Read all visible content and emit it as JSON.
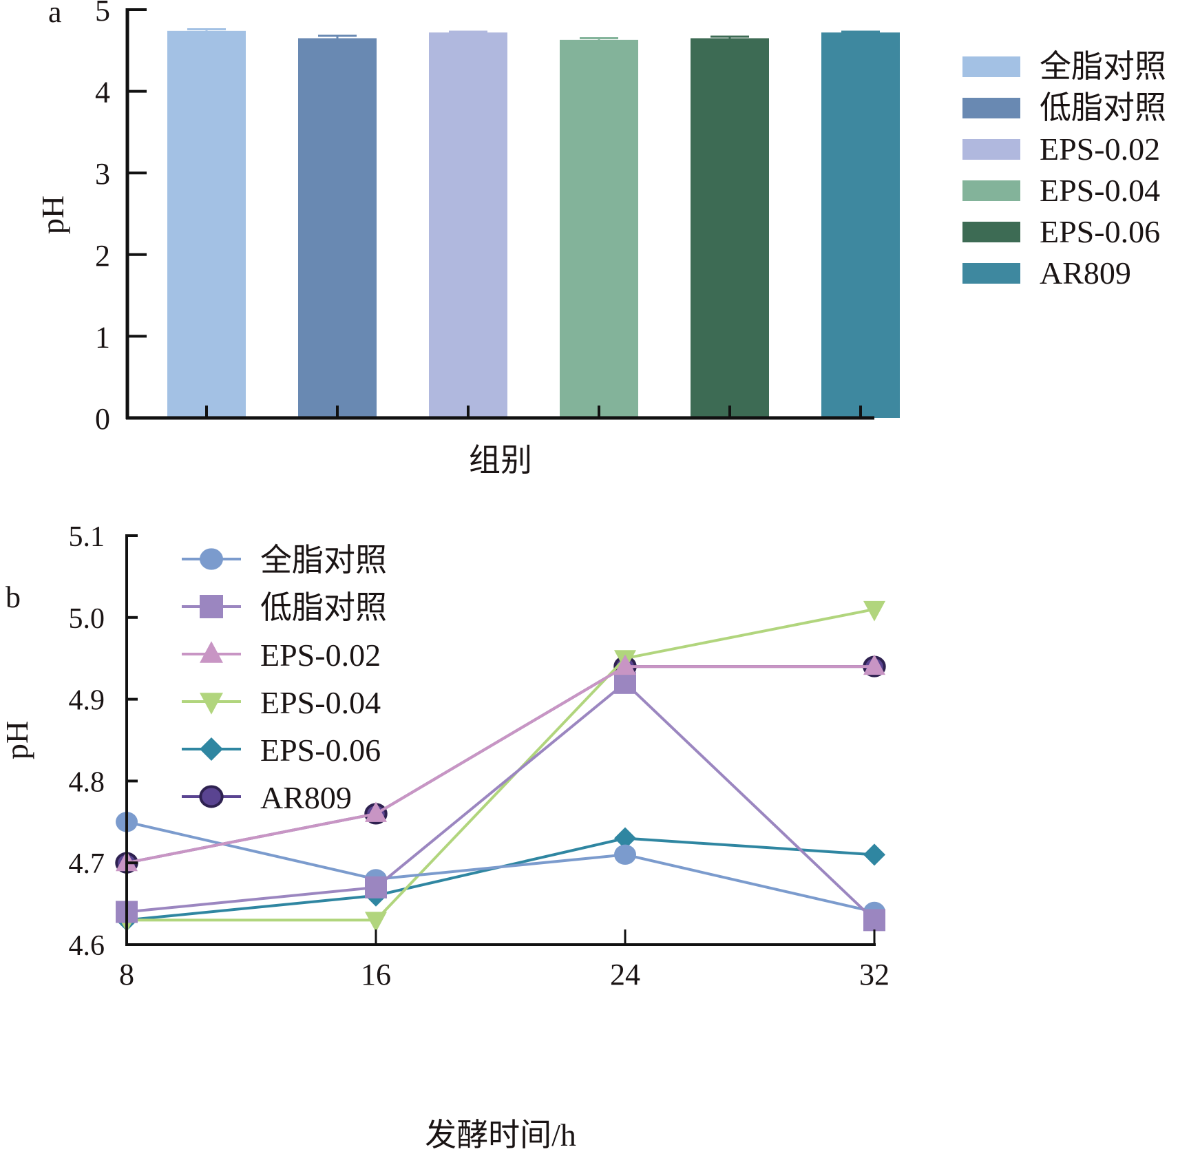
{
  "chart_data": [
    {
      "panel": "a",
      "type": "bar",
      "title": "",
      "xlabel": "组别",
      "ylabel": "pH",
      "ylim": [
        0,
        5
      ],
      "yticks": [
        "0",
        "1",
        "2",
        "3",
        "4",
        "5"
      ],
      "categories": [
        "全脂对照",
        "低脂对照",
        "EPS-0.02",
        "EPS-0.04",
        "EPS-0.06",
        "AR809"
      ],
      "values": [
        4.74,
        4.65,
        4.72,
        4.63,
        4.65,
        4.72
      ],
      "errors": [
        0.02,
        0.03,
        0.01,
        0.02,
        0.02,
        0.01
      ],
      "colors": [
        "#a3c1e4",
        "#6989b2",
        "#b0b8de",
        "#83b39a",
        "#3d6b54",
        "#3e889f"
      ],
      "legend": {
        "position": "right",
        "entries": [
          "全脂对照",
          "低脂对照",
          "EPS-0.02",
          "EPS-0.04",
          "EPS-0.06",
          "AR809"
        ]
      },
      "grid": false
    },
    {
      "panel": "b",
      "type": "line",
      "title": "",
      "xlabel": "发酵时间/h",
      "ylabel": "pH",
      "x": [
        8,
        16,
        24,
        32
      ],
      "xticks": [
        "8",
        "16",
        "24",
        "32"
      ],
      "ylim": [
        4.6,
        5.1
      ],
      "yticks": [
        "4.6",
        "4.7",
        "4.8",
        "4.9",
        "5.0",
        "5.1"
      ],
      "legend": {
        "position": "top-left"
      },
      "grid": false,
      "series": [
        {
          "name": "全脂对照",
          "marker": "circle",
          "color": "#7b9bcd",
          "values": [
            4.75,
            4.68,
            4.71,
            4.64
          ]
        },
        {
          "name": "低脂对照",
          "marker": "square",
          "color": "#9b86c0",
          "values": [
            4.64,
            4.67,
            4.92,
            4.63
          ]
        },
        {
          "name": "EPS-0.02",
          "marker": "triangle-up",
          "color": "#c895c4",
          "values": [
            4.7,
            4.76,
            4.94,
            4.94
          ]
        },
        {
          "name": "EPS-0.04",
          "marker": "triangle-down",
          "color": "#b1d57d",
          "values": [
            4.63,
            4.63,
            4.95,
            5.01
          ]
        },
        {
          "name": "EPS-0.06",
          "marker": "diamond",
          "color": "#2f86a1",
          "values": [
            4.63,
            4.66,
            4.73,
            4.71
          ]
        },
        {
          "name": "AR809",
          "marker": "circle-dark",
          "color": "#5a4491",
          "edge": "#2e2150",
          "values": [
            4.7,
            4.76,
            4.94,
            4.94
          ]
        }
      ]
    }
  ],
  "labels": {
    "panel_a": "a",
    "panel_b": "b"
  }
}
